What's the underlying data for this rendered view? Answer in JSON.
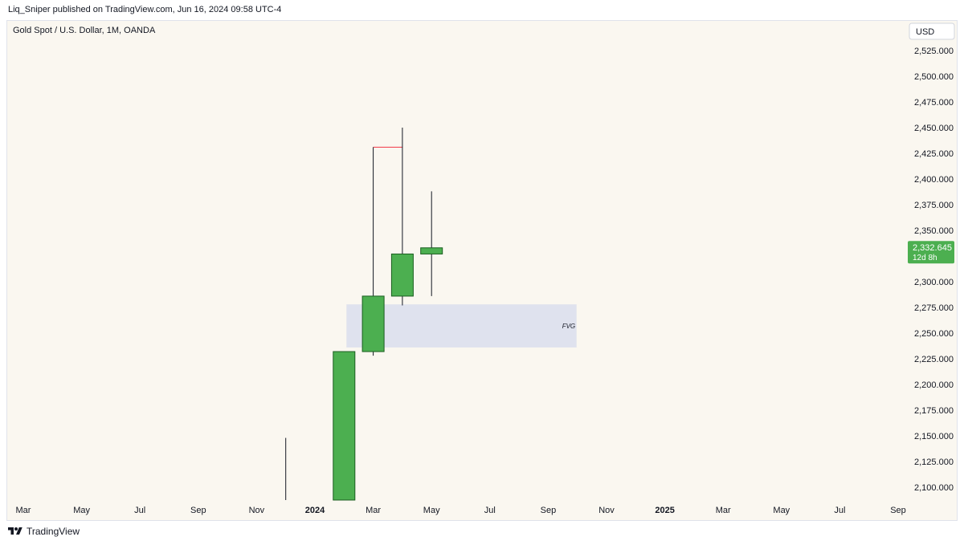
{
  "header": {
    "published_line": "Liq_Sniper published on TradingView.com, Jun 16, 2024 09:58 UTC-4"
  },
  "footer": {
    "brand": "TradingView",
    "logo_icon": "tradingview-logo-icon"
  },
  "colors": {
    "background": "#faf7f0",
    "bull": "#4caf50",
    "bull_border": "#1b5e20",
    "wick": "#131722",
    "fvg_fill": "#dfe2ee",
    "red_line": "#f23645",
    "price_label_bg": "#4caf50"
  },
  "chart_data": {
    "type": "candlestick",
    "title": "Gold Spot / U.S. Dollar, 1M, OANDA",
    "currency_button": "USD",
    "ylim": [
      2085,
      2545
    ],
    "y_ticks": [
      2100,
      2125,
      2150,
      2175,
      2200,
      2225,
      2250,
      2275,
      2300,
      2325,
      2350,
      2375,
      2400,
      2425,
      2450,
      2475,
      2500,
      2525
    ],
    "y_tick_labels": [
      "2,100.000",
      "2,125.000",
      "2,150.000",
      "2,175.000",
      "2,200.000",
      "2,225.000",
      "2,250.000",
      "2,275.000",
      "2,300.000",
      "2,325.000",
      "2,350.000",
      "2,375.000",
      "2,400.000",
      "2,425.000",
      "2,450.000",
      "2,475.000",
      "2,500.000",
      "2,525.000"
    ],
    "x_tick_labels": [
      {
        "label": "Mar",
        "bold": false
      },
      {
        "label": "May",
        "bold": false
      },
      {
        "label": "Jul",
        "bold": false
      },
      {
        "label": "Sep",
        "bold": false
      },
      {
        "label": "Nov",
        "bold": false
      },
      {
        "label": "2024",
        "bold": true
      },
      {
        "label": "Mar",
        "bold": false
      },
      {
        "label": "May",
        "bold": false
      },
      {
        "label": "Jul",
        "bold": false
      },
      {
        "label": "Sep",
        "bold": false
      },
      {
        "label": "Nov",
        "bold": false
      },
      {
        "label": "2025",
        "bold": true
      },
      {
        "label": "Mar",
        "bold": false
      },
      {
        "label": "May",
        "bold": false
      },
      {
        "label": "Jul",
        "bold": false
      },
      {
        "label": "Sep",
        "bold": false
      }
    ],
    "candles": [
      {
        "date": "2023-12",
        "open": null,
        "high": 2148,
        "low": 2085,
        "close": null,
        "wick_only": true
      },
      {
        "date": "2024-02",
        "open": 2085,
        "high": 2232,
        "low": 2085,
        "close": 2232
      },
      {
        "date": "2024-03",
        "open": 2232,
        "high": 2431,
        "low": 2228,
        "close": 2286
      },
      {
        "date": "2024-04",
        "open": 2286,
        "high": 2450,
        "low": 2277,
        "close": 2327
      },
      {
        "date": "2024-05",
        "open": 2327,
        "high": 2388,
        "low": 2286,
        "close": 2333
      }
    ],
    "annotations": [
      {
        "type": "zone",
        "label": "FVG",
        "from_date": "2024-02",
        "to_date": "2024-10",
        "low": 2236,
        "high": 2278
      },
      {
        "type": "line",
        "from_date": "2024-03",
        "to_date": "2024-04",
        "price": 2431
      }
    ],
    "last_price": {
      "label": "2,332.645",
      "value": 2332.645,
      "countdown": "12d 8h"
    }
  }
}
